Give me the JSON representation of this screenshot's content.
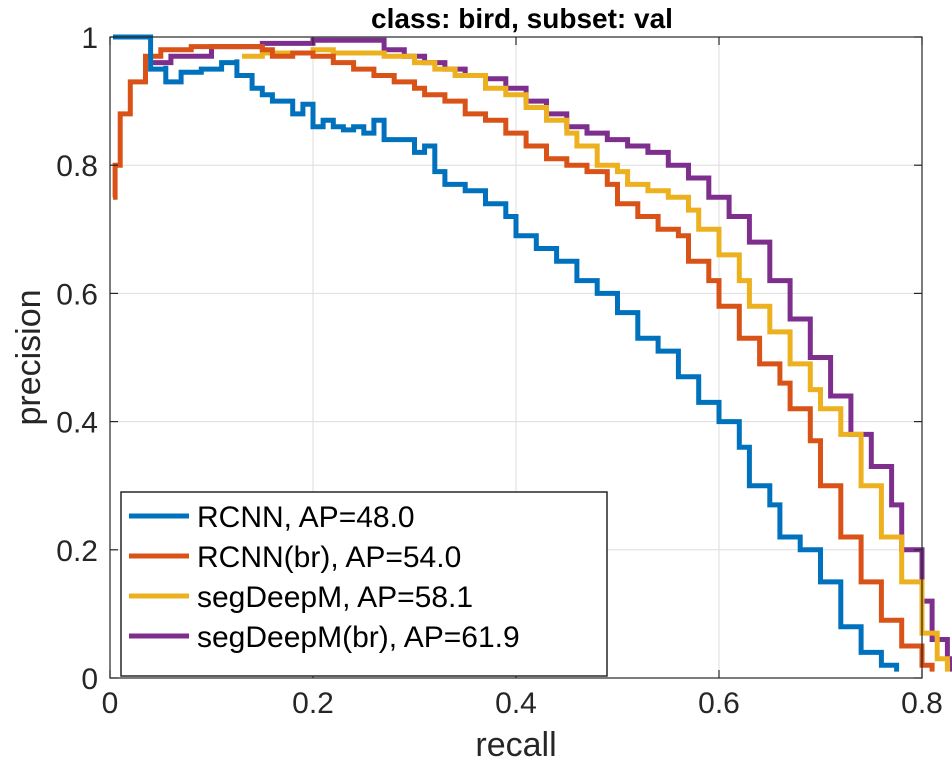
{
  "chart_data": {
    "type": "line",
    "title": "class: bird, subset: val",
    "xlabel": "recall",
    "ylabel": "precision",
    "xlim": [
      0,
      0.8
    ],
    "ylim": [
      0,
      1
    ],
    "xticks": [
      0,
      0.2,
      0.4,
      0.6,
      0.8
    ],
    "xtick_labels": [
      "0",
      "0.2",
      "0.4",
      "0.6",
      "0.8"
    ],
    "yticks": [
      0,
      0.2,
      0.4,
      0.6,
      0.8,
      1
    ],
    "ytick_labels": [
      "0",
      "0.2",
      "0.4",
      "0.6",
      "0.8",
      "1"
    ],
    "grid": true,
    "legend_position": "bottom-left",
    "series": [
      {
        "name": "RCNN, AP=48.0",
        "color": "#0072BD",
        "points": [
          [
            0.003,
            1.0
          ],
          [
            0.04,
            1.0
          ],
          [
            0.04,
            0.95
          ],
          [
            0.055,
            0.955
          ],
          [
            0.055,
            0.93
          ],
          [
            0.07,
            0.945
          ],
          [
            0.09,
            0.95
          ],
          [
            0.11,
            0.96
          ],
          [
            0.125,
            0.965
          ],
          [
            0.125,
            0.94
          ],
          [
            0.14,
            0.92
          ],
          [
            0.15,
            0.91
          ],
          [
            0.16,
            0.9
          ],
          [
            0.17,
            0.9
          ],
          [
            0.18,
            0.88
          ],
          [
            0.19,
            0.895
          ],
          [
            0.2,
            0.86
          ],
          [
            0.21,
            0.87
          ],
          [
            0.22,
            0.86
          ],
          [
            0.23,
            0.855
          ],
          [
            0.24,
            0.86
          ],
          [
            0.25,
            0.85
          ],
          [
            0.26,
            0.87
          ],
          [
            0.27,
            0.84
          ],
          [
            0.28,
            0.84
          ],
          [
            0.3,
            0.82
          ],
          [
            0.31,
            0.83
          ],
          [
            0.32,
            0.79
          ],
          [
            0.33,
            0.77
          ],
          [
            0.35,
            0.76
          ],
          [
            0.37,
            0.74
          ],
          [
            0.39,
            0.72
          ],
          [
            0.4,
            0.69
          ],
          [
            0.42,
            0.67
          ],
          [
            0.44,
            0.65
          ],
          [
            0.46,
            0.62
          ],
          [
            0.48,
            0.6
          ],
          [
            0.5,
            0.57
          ],
          [
            0.52,
            0.53
          ],
          [
            0.54,
            0.51
          ],
          [
            0.56,
            0.47
          ],
          [
            0.58,
            0.43
          ],
          [
            0.6,
            0.4
          ],
          [
            0.62,
            0.36
          ],
          [
            0.63,
            0.3
          ],
          [
            0.65,
            0.27
          ],
          [
            0.66,
            0.22
          ],
          [
            0.68,
            0.2
          ],
          [
            0.7,
            0.15
          ],
          [
            0.72,
            0.08
          ],
          [
            0.74,
            0.04
          ],
          [
            0.76,
            0.02
          ],
          [
            0.775,
            0.01
          ]
        ]
      },
      {
        "name": "RCNN(br), AP=54.0",
        "color": "#D95319",
        "points": [
          [
            0.003,
            0.75
          ],
          [
            0.005,
            0.8
          ],
          [
            0.01,
            0.88
          ],
          [
            0.02,
            0.93
          ],
          [
            0.035,
            0.97
          ],
          [
            0.05,
            0.98
          ],
          [
            0.08,
            0.985
          ],
          [
            0.12,
            0.985
          ],
          [
            0.15,
            0.98
          ],
          [
            0.16,
            0.97
          ],
          [
            0.18,
            0.975
          ],
          [
            0.2,
            0.97
          ],
          [
            0.22,
            0.96
          ],
          [
            0.24,
            0.95
          ],
          [
            0.26,
            0.94
          ],
          [
            0.28,
            0.93
          ],
          [
            0.3,
            0.92
          ],
          [
            0.31,
            0.91
          ],
          [
            0.33,
            0.9
          ],
          [
            0.35,
            0.88
          ],
          [
            0.37,
            0.87
          ],
          [
            0.39,
            0.85
          ],
          [
            0.41,
            0.83
          ],
          [
            0.43,
            0.81
          ],
          [
            0.45,
            0.8
          ],
          [
            0.47,
            0.79
          ],
          [
            0.49,
            0.77
          ],
          [
            0.5,
            0.74
          ],
          [
            0.52,
            0.72
          ],
          [
            0.54,
            0.7
          ],
          [
            0.56,
            0.69
          ],
          [
            0.57,
            0.65
          ],
          [
            0.59,
            0.62
          ],
          [
            0.6,
            0.58
          ],
          [
            0.62,
            0.53
          ],
          [
            0.64,
            0.49
          ],
          [
            0.66,
            0.46
          ],
          [
            0.67,
            0.42
          ],
          [
            0.69,
            0.37
          ],
          [
            0.7,
            0.3
          ],
          [
            0.72,
            0.22
          ],
          [
            0.74,
            0.15
          ],
          [
            0.76,
            0.09
          ],
          [
            0.78,
            0.05
          ],
          [
            0.8,
            0.02
          ],
          [
            0.81,
            0.01
          ]
        ]
      },
      {
        "name": "segDeepM, AP=58.1",
        "color": "#EDB120",
        "points": [
          [
            0.13,
            0.97
          ],
          [
            0.15,
            0.975
          ],
          [
            0.18,
            0.975
          ],
          [
            0.2,
            0.98
          ],
          [
            0.22,
            0.975
          ],
          [
            0.25,
            0.975
          ],
          [
            0.27,
            0.97
          ],
          [
            0.3,
            0.96
          ],
          [
            0.32,
            0.95
          ],
          [
            0.34,
            0.94
          ],
          [
            0.37,
            0.92
          ],
          [
            0.39,
            0.91
          ],
          [
            0.41,
            0.89
          ],
          [
            0.43,
            0.87
          ],
          [
            0.45,
            0.85
          ],
          [
            0.46,
            0.83
          ],
          [
            0.48,
            0.8
          ],
          [
            0.5,
            0.79
          ],
          [
            0.51,
            0.77
          ],
          [
            0.53,
            0.76
          ],
          [
            0.55,
            0.75
          ],
          [
            0.57,
            0.73
          ],
          [
            0.58,
            0.7
          ],
          [
            0.6,
            0.66
          ],
          [
            0.62,
            0.62
          ],
          [
            0.63,
            0.58
          ],
          [
            0.65,
            0.54
          ],
          [
            0.67,
            0.49
          ],
          [
            0.69,
            0.45
          ],
          [
            0.7,
            0.42
          ],
          [
            0.72,
            0.38
          ],
          [
            0.74,
            0.3
          ],
          [
            0.76,
            0.22
          ],
          [
            0.78,
            0.15
          ],
          [
            0.8,
            0.07
          ],
          [
            0.815,
            0.03
          ],
          [
            0.825,
            0.01
          ]
        ]
      },
      {
        "name": "segDeepM(br), AP=61.9",
        "color": "#7E2F8E",
        "points": [
          [
            0.04,
            0.96
          ],
          [
            0.06,
            0.97
          ],
          [
            0.1,
            0.985
          ],
          [
            0.15,
            0.99
          ],
          [
            0.2,
            0.995
          ],
          [
            0.24,
            0.995
          ],
          [
            0.27,
            0.98
          ],
          [
            0.29,
            0.97
          ],
          [
            0.31,
            0.96
          ],
          [
            0.33,
            0.95
          ],
          [
            0.35,
            0.94
          ],
          [
            0.37,
            0.935
          ],
          [
            0.39,
            0.92
          ],
          [
            0.41,
            0.9
          ],
          [
            0.43,
            0.88
          ],
          [
            0.45,
            0.86
          ],
          [
            0.47,
            0.85
          ],
          [
            0.49,
            0.84
          ],
          [
            0.51,
            0.83
          ],
          [
            0.53,
            0.82
          ],
          [
            0.55,
            0.8
          ],
          [
            0.57,
            0.78
          ],
          [
            0.59,
            0.75
          ],
          [
            0.61,
            0.72
          ],
          [
            0.63,
            0.68
          ],
          [
            0.65,
            0.62
          ],
          [
            0.67,
            0.56
          ],
          [
            0.69,
            0.5
          ],
          [
            0.71,
            0.44
          ],
          [
            0.73,
            0.38
          ],
          [
            0.75,
            0.33
          ],
          [
            0.77,
            0.27
          ],
          [
            0.78,
            0.2
          ],
          [
            0.8,
            0.12
          ],
          [
            0.81,
            0.06
          ],
          [
            0.825,
            0.03
          ],
          [
            0.83,
            0.01
          ]
        ]
      }
    ]
  }
}
